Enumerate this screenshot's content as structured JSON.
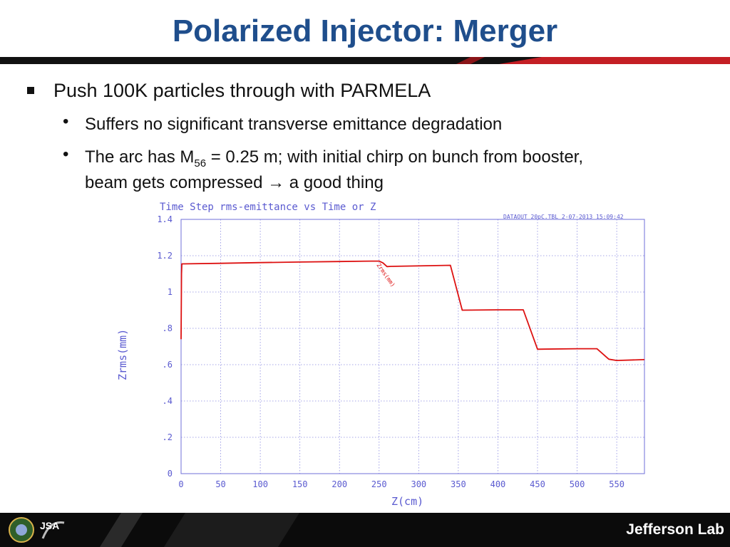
{
  "slide": {
    "title": "Polarized Injector: Merger",
    "bullet1": "Push 100K particles through with PARMELA",
    "bullet2": "Suffers no significant transverse emittance degradation",
    "bullet3_pre": "The arc has M",
    "bullet3_sub": "56",
    "bullet3_mid": " = 0.25 m; with initial chirp on bunch from booster,",
    "bullet3_line2": "beam gets compressed",
    "bullet3_arrow": "→",
    "bullet3_end": " a good thing",
    "bullet_glyph": "•"
  },
  "footer": {
    "jsa_logo_text": "JSA",
    "jefferson_logo_text": "Jefferson Lab"
  },
  "chart_data": {
    "type": "line",
    "title": "Time Step rms-emittance vs Time or Z",
    "header_info": "DATAOUT 20pC.TBL    2-07-2013  15:09:42",
    "xlabel": "Z(cm)",
    "ylabel": "Zrms(mm)",
    "xlim": [
      0,
      585
    ],
    "ylim": [
      0,
      1.4
    ],
    "x_ticks": [
      "0",
      "50",
      "100",
      "150",
      "200",
      "250",
      "300",
      "350",
      "400",
      "450",
      "500",
      "550"
    ],
    "y_ticks": [
      "0",
      ".2",
      ".4",
      ".6",
      ".8",
      "1",
      "1.2",
      "1.4"
    ],
    "grid": true,
    "series": [
      {
        "name": "Zrms(mm)",
        "color": "#dd1111",
        "x": [
          0,
          0.5,
          1,
          50,
          100,
          150,
          200,
          240,
          250,
          255,
          260,
          265,
          340,
          355,
          400,
          432,
          450,
          500,
          525,
          540,
          550,
          585
        ],
        "y": [
          0.74,
          1.1,
          1.155,
          1.158,
          1.162,
          1.165,
          1.168,
          1.17,
          1.17,
          1.16,
          1.14,
          1.141,
          1.147,
          0.9,
          0.902,
          0.902,
          0.685,
          0.688,
          0.688,
          0.63,
          0.623,
          0.628
        ]
      }
    ]
  }
}
